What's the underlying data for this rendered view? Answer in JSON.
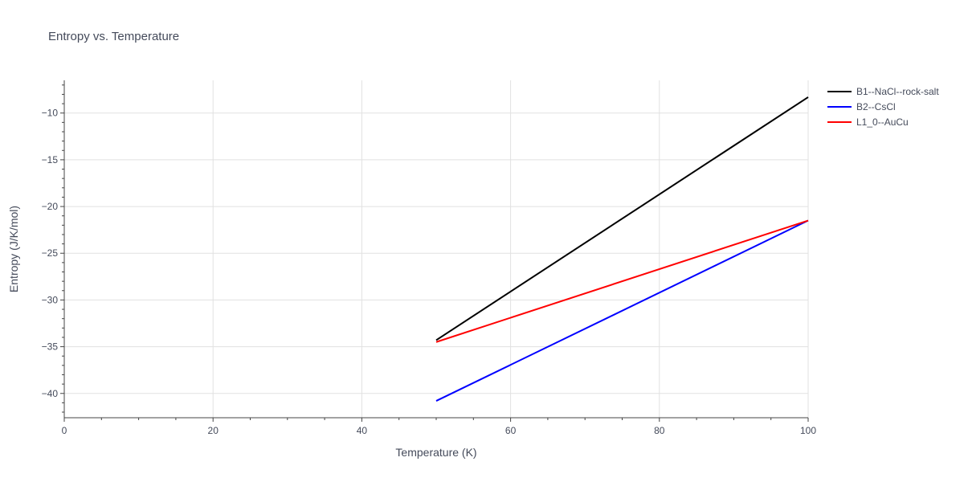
{
  "chart_data": {
    "type": "line",
    "title": "Entropy vs. Temperature",
    "xlabel": "Temperature (K)",
    "ylabel": "Entropy (J/K/mol)",
    "xlim": [
      0,
      100
    ],
    "ylim": [
      -42.6,
      -6.5
    ],
    "x_ticks": [
      0,
      20,
      40,
      60,
      80,
      100
    ],
    "y_ticks": [
      -40,
      -35,
      -30,
      -25,
      -20,
      -15,
      -10
    ],
    "grid": true,
    "legend_position": "top-right",
    "series": [
      {
        "name": "B1--NaCl--rock-salt",
        "color": "#000000",
        "x": [
          50,
          100
        ],
        "y": [
          -34.3,
          -8.3
        ]
      },
      {
        "name": "B2--CsCl",
        "color": "#0000ff",
        "x": [
          50,
          100
        ],
        "y": [
          -40.8,
          -21.5
        ]
      },
      {
        "name": "L1_0--AuCu",
        "color": "#ff0000",
        "x": [
          50,
          100
        ],
        "y": [
          -34.5,
          -21.5
        ]
      }
    ]
  }
}
